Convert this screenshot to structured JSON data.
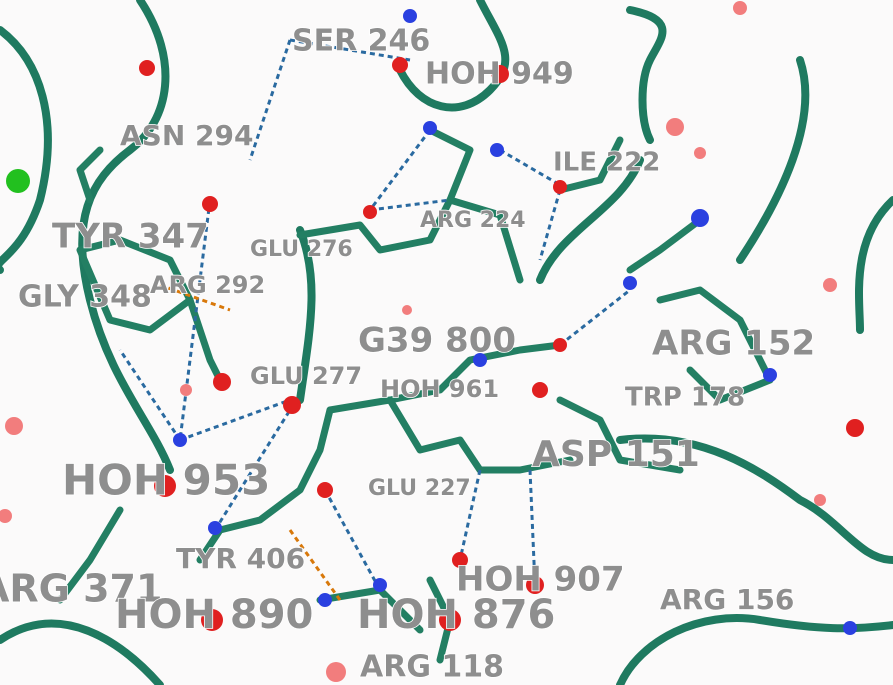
{
  "labels": [
    "SER 246",
    "HOH 949",
    "ASN 294",
    "ILE 222",
    "TYR 347",
    "ARG 224",
    "GLU 276",
    "ARG 292",
    "GLY 348",
    "G39 800",
    "ARG 152",
    "GLU 277",
    "HOH 961",
    "TRP 178",
    "ASP 151",
    "HOH 953",
    "GLU 227",
    "TYR 406",
    "ARG 371",
    "HOH 890",
    "HOH 876",
    "HOH 907",
    "ARG 156",
    "ARG 118"
  ]
}
